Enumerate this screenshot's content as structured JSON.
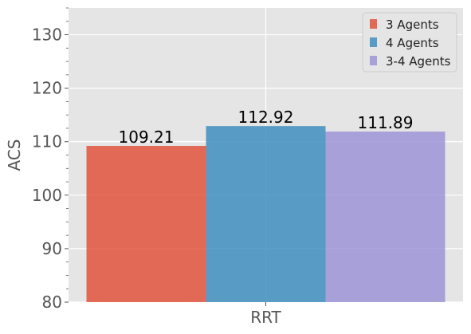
{
  "chart_data": {
    "type": "bar",
    "categories": [
      "RRT"
    ],
    "series": [
      {
        "name": "3 Agents",
        "values": [
          109.21
        ],
        "color": "#E24A33",
        "label": "109.21"
      },
      {
        "name": "4 Agents",
        "values": [
          112.92
        ],
        "color": "#348ABD",
        "label": "112.92"
      },
      {
        "name": "3-4 Agents",
        "values": [
          111.89
        ],
        "color": "#988ED5",
        "label": "111.89"
      }
    ],
    "title": "",
    "xlabel": "",
    "ylabel": "ACS",
    "ylim": [
      80,
      135
    ],
    "yticks": [
      80,
      90,
      100,
      110,
      120,
      130
    ],
    "grid": true,
    "legend_position": "top-right",
    "background_color": "#E5E5E5",
    "grid_color": "#FFFFFF"
  }
}
